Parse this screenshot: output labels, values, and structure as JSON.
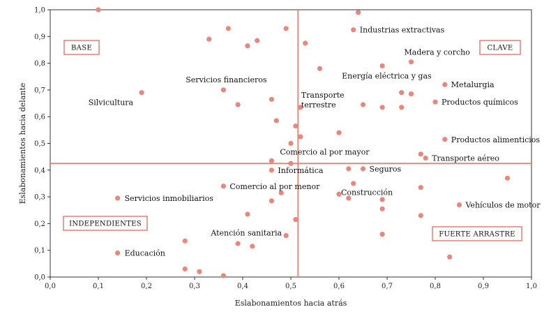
{
  "chart_data": {
    "type": "scatter",
    "xlabel": "Eslabonamientos hacia atrás",
    "ylabel": "Eslabonamientos hacia delante",
    "xlim": [
      0,
      1
    ],
    "ylim": [
      0,
      1
    ],
    "x_ticks": [
      "0,0",
      "0,1",
      "0,2",
      "0,3",
      "0,4",
      "0,5",
      "0,6",
      "0,7",
      "0,8",
      "0,9",
      "1,0"
    ],
    "y_ticks": [
      "0,0",
      "0,1",
      "0,2",
      "0,3",
      "0,4",
      "0,5",
      "0,6",
      "0,7",
      "0,8",
      "0,9",
      "1,0"
    ],
    "grid": false,
    "reference_lines": {
      "x": 0.515,
      "y": 0.425
    },
    "marker_color": "#e8877c",
    "line_color": "#e8877c",
    "quadrant_labels": [
      {
        "text": "BASE",
        "position": "top-left"
      },
      {
        "text": "CLAVE",
        "position": "top-right"
      },
      {
        "text": "INDEPENDIENTES",
        "position": "bottom-left"
      },
      {
        "text": "FUERTE ARRASTRE",
        "position": "bottom-right"
      }
    ],
    "points": [
      {
        "x": 0.1,
        "y": 1.0,
        "label": ""
      },
      {
        "x": 0.64,
        "y": 0.99,
        "label": ""
      },
      {
        "x": 0.37,
        "y": 0.93,
        "label": ""
      },
      {
        "x": 0.49,
        "y": 0.93,
        "label": ""
      },
      {
        "x": 0.63,
        "y": 0.925,
        "label": "Industrias extractivas"
      },
      {
        "x": 0.33,
        "y": 0.89,
        "label": ""
      },
      {
        "x": 0.43,
        "y": 0.885,
        "label": ""
      },
      {
        "x": 0.53,
        "y": 0.875,
        "label": ""
      },
      {
        "x": 0.41,
        "y": 0.865,
        "label": ""
      },
      {
        "x": 0.75,
        "y": 0.805,
        "label": "Madera y corcho"
      },
      {
        "x": 0.69,
        "y": 0.79,
        "label": "Energía eléctrica y gas"
      },
      {
        "x": 0.56,
        "y": 0.78,
        "label": ""
      },
      {
        "x": 0.82,
        "y": 0.72,
        "label": "Metalurgia"
      },
      {
        "x": 0.19,
        "y": 0.69,
        "label": "Silvicultura"
      },
      {
        "x": 0.36,
        "y": 0.7,
        "label": "Servicios financieros"
      },
      {
        "x": 0.73,
        "y": 0.69,
        "label": ""
      },
      {
        "x": 0.75,
        "y": 0.685,
        "label": ""
      },
      {
        "x": 0.46,
        "y": 0.665,
        "label": ""
      },
      {
        "x": 0.8,
        "y": 0.655,
        "label": "Productos químicos"
      },
      {
        "x": 0.39,
        "y": 0.645,
        "label": ""
      },
      {
        "x": 0.65,
        "y": 0.645,
        "label": ""
      },
      {
        "x": 0.52,
        "y": 0.635,
        "label": "Transporte terrestre"
      },
      {
        "x": 0.69,
        "y": 0.635,
        "label": ""
      },
      {
        "x": 0.73,
        "y": 0.635,
        "label": ""
      },
      {
        "x": 0.47,
        "y": 0.585,
        "label": ""
      },
      {
        "x": 0.51,
        "y": 0.565,
        "label": ""
      },
      {
        "x": 0.6,
        "y": 0.54,
        "label": ""
      },
      {
        "x": 0.52,
        "y": 0.525,
        "label": ""
      },
      {
        "x": 0.82,
        "y": 0.515,
        "label": "Productos alimenticios"
      },
      {
        "x": 0.5,
        "y": 0.5,
        "label": ""
      },
      {
        "x": 0.77,
        "y": 0.46,
        "label": ""
      },
      {
        "x": 0.78,
        "y": 0.445,
        "label": "Transporte aéreo"
      },
      {
        "x": 0.46,
        "y": 0.435,
        "label": "Comercio al por mayor"
      },
      {
        "x": 0.5,
        "y": 0.425,
        "label": ""
      },
      {
        "x": 0.62,
        "y": 0.405,
        "label": ""
      },
      {
        "x": 0.65,
        "y": 0.405,
        "label": "Seguros"
      },
      {
        "x": 0.46,
        "y": 0.4,
        "label": "Informática"
      },
      {
        "x": 0.95,
        "y": 0.37,
        "label": ""
      },
      {
        "x": 0.63,
        "y": 0.35,
        "label": ""
      },
      {
        "x": 0.36,
        "y": 0.34,
        "label": "Comercio al por menor"
      },
      {
        "x": 0.77,
        "y": 0.335,
        "label": ""
      },
      {
        "x": 0.6,
        "y": 0.31,
        "label": "Construcción"
      },
      {
        "x": 0.48,
        "y": 0.315,
        "label": ""
      },
      {
        "x": 0.62,
        "y": 0.295,
        "label": ""
      },
      {
        "x": 0.14,
        "y": 0.295,
        "label": "Servicios inmobiliarios"
      },
      {
        "x": 0.69,
        "y": 0.29,
        "label": ""
      },
      {
        "x": 0.46,
        "y": 0.285,
        "label": ""
      },
      {
        "x": 0.85,
        "y": 0.27,
        "label": "Vehículos de motor"
      },
      {
        "x": 0.69,
        "y": 0.255,
        "label": ""
      },
      {
        "x": 0.41,
        "y": 0.235,
        "label": ""
      },
      {
        "x": 0.77,
        "y": 0.23,
        "label": ""
      },
      {
        "x": 0.51,
        "y": 0.215,
        "label": ""
      },
      {
        "x": 0.69,
        "y": 0.16,
        "label": ""
      },
      {
        "x": 0.49,
        "y": 0.155,
        "label": "Atención sanitaria"
      },
      {
        "x": 0.28,
        "y": 0.135,
        "label": ""
      },
      {
        "x": 0.39,
        "y": 0.125,
        "label": ""
      },
      {
        "x": 0.42,
        "y": 0.115,
        "label": ""
      },
      {
        "x": 0.14,
        "y": 0.09,
        "label": "Educación"
      },
      {
        "x": 0.83,
        "y": 0.075,
        "label": ""
      },
      {
        "x": 0.28,
        "y": 0.03,
        "label": ""
      },
      {
        "x": 0.31,
        "y": 0.02,
        "label": ""
      },
      {
        "x": 0.36,
        "y": 0.005,
        "label": ""
      }
    ]
  }
}
